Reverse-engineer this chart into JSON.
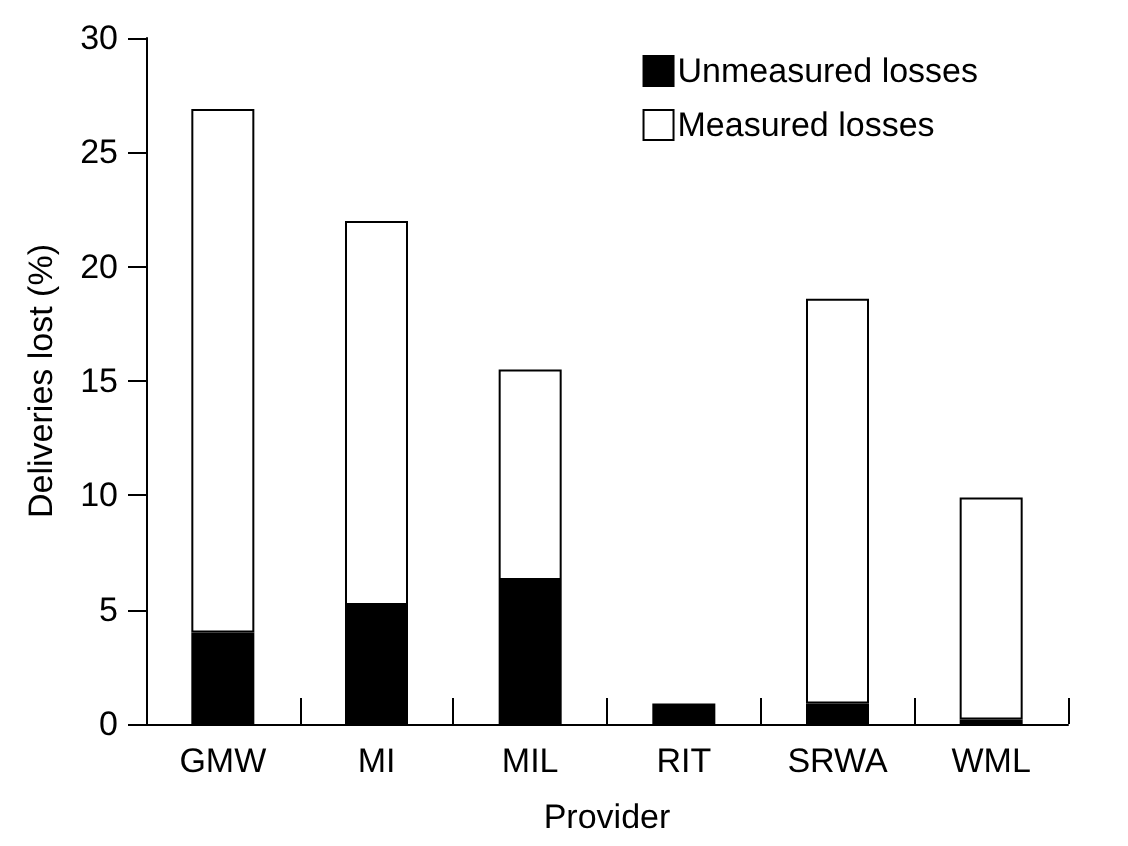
{
  "chart_data": {
    "type": "bar",
    "xlabel": "Provider",
    "ylabel": "Deliveries lost (%)",
    "categories": [
      "GMW",
      "MI",
      "MIL",
      "RIT",
      "SRWA",
      "WML"
    ],
    "stacked": true,
    "series": [
      {
        "name": "Unmeasured losses",
        "color": "#000000",
        "values": [
          4.0,
          5.2,
          6.3,
          0.9,
          0.9,
          0.2
        ]
      },
      {
        "name": "Measured losses",
        "color": "#ffffff",
        "values": [
          22.9,
          16.8,
          9.2,
          null,
          17.7,
          9.7
        ]
      }
    ],
    "ylim": [
      0,
      30
    ],
    "yticks": [
      0,
      5,
      10,
      15,
      20,
      25,
      30
    ],
    "grid": false,
    "legend": "top right"
  }
}
